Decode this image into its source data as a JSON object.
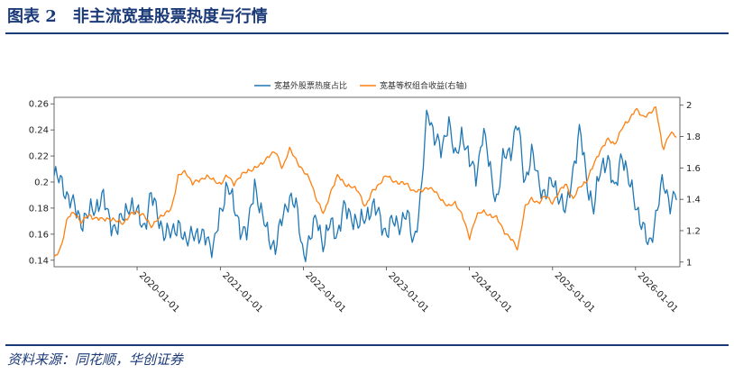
{
  "figure": {
    "title": "图表 2　非主流宽基股票热度与行情",
    "source": "资料来源：同花顺，华创证券"
  },
  "chart_data": {
    "type": "line",
    "legend_position": "top-center",
    "grid": false,
    "x_ticks": [
      "2020-01-01",
      "2021-01-01",
      "2022-01-01",
      "2023-01-01",
      "2024-01-01",
      "2025-01-01",
      "2026-01-01"
    ],
    "xlim": [
      "2019-01-01",
      "2026-07-15"
    ],
    "y_left": {
      "ylim": [
        0.135,
        0.265
      ],
      "ticks": [
        0.14,
        0.16,
        0.18,
        0.2,
        0.22,
        0.24,
        0.26
      ],
      "tick_labels": [
        "0.14",
        "0.16",
        "0.18",
        "0.2",
        "0.22",
        "0.24",
        "0.26"
      ]
    },
    "y_right": {
      "ylim": [
        0.97,
        2.05
      ],
      "ticks": [
        1,
        1.2,
        1.4,
        1.6,
        1.8,
        2
      ],
      "tick_labels": [
        "1",
        "1.2",
        "1.4",
        "1.6",
        "1.8",
        "2"
      ]
    },
    "series": [
      {
        "name": "宽基外股票热度占比",
        "axis": "left",
        "color": "#1f77b4",
        "points": [
          [
            "2019-01-01",
            0.205
          ],
          [
            "2019-02-01",
            0.2
          ],
          [
            "2019-03-01",
            0.19
          ],
          [
            "2019-04-01",
            0.18
          ],
          [
            "2019-05-01",
            0.17
          ],
          [
            "2019-06-01",
            0.175
          ],
          [
            "2019-07-01",
            0.18
          ],
          [
            "2019-08-01",
            0.19
          ],
          [
            "2019-09-01",
            0.17
          ],
          [
            "2019-10-01",
            0.165
          ],
          [
            "2019-11-01",
            0.172
          ],
          [
            "2019-12-01",
            0.185
          ],
          [
            "2020-01-01",
            0.175
          ],
          [
            "2020-02-01",
            0.165
          ],
          [
            "2020-03-01",
            0.19
          ],
          [
            "2020-04-01",
            0.175
          ],
          [
            "2020-05-01",
            0.16
          ],
          [
            "2020-06-01",
            0.16
          ],
          [
            "2020-07-01",
            0.17
          ],
          [
            "2020-08-01",
            0.15
          ],
          [
            "2020-09-01",
            0.165
          ],
          [
            "2020-10-01",
            0.155
          ],
          [
            "2020-11-01",
            0.16
          ],
          [
            "2020-12-01",
            0.148
          ],
          [
            "2021-01-01",
            0.175
          ],
          [
            "2021-02-01",
            0.2
          ],
          [
            "2021-03-01",
            0.18
          ],
          [
            "2021-04-01",
            0.165
          ],
          [
            "2021-05-01",
            0.16
          ],
          [
            "2021-06-01",
            0.2
          ],
          [
            "2021-07-01",
            0.175
          ],
          [
            "2021-08-01",
            0.158
          ],
          [
            "2021-09-01",
            0.15
          ],
          [
            "2021-10-01",
            0.172
          ],
          [
            "2021-11-01",
            0.19
          ],
          [
            "2021-12-01",
            0.18
          ],
          [
            "2022-01-01",
            0.145
          ],
          [
            "2022-02-01",
            0.155
          ],
          [
            "2022-03-01",
            0.175
          ],
          [
            "2022-04-01",
            0.15
          ],
          [
            "2022-05-01",
            0.17
          ],
          [
            "2022-06-01",
            0.16
          ],
          [
            "2022-07-01",
            0.18
          ],
          [
            "2022-08-01",
            0.175
          ],
          [
            "2022-09-01",
            0.165
          ],
          [
            "2022-10-01",
            0.175
          ],
          [
            "2022-11-01",
            0.18
          ],
          [
            "2022-12-01",
            0.175
          ],
          [
            "2023-01-01",
            0.16
          ],
          [
            "2023-02-01",
            0.17
          ],
          [
            "2023-03-01",
            0.168
          ],
          [
            "2023-04-01",
            0.175
          ],
          [
            "2023-05-01",
            0.155
          ],
          [
            "2023-06-01",
            0.185
          ],
          [
            "2023-07-01",
            0.258
          ],
          [
            "2023-08-01",
            0.235
          ],
          [
            "2023-09-01",
            0.222
          ],
          [
            "2023-10-01",
            0.25
          ],
          [
            "2023-11-01",
            0.215
          ],
          [
            "2023-12-01",
            0.24
          ],
          [
            "2024-01-01",
            0.215
          ],
          [
            "2024-02-01",
            0.205
          ],
          [
            "2024-03-01",
            0.24
          ],
          [
            "2024-04-01",
            0.21
          ],
          [
            "2024-05-01",
            0.185
          ],
          [
            "2024-06-01",
            0.22
          ],
          [
            "2024-07-01",
            0.225
          ],
          [
            "2024-08-01",
            0.245
          ],
          [
            "2024-09-01",
            0.2
          ],
          [
            "2024-10-01",
            0.222
          ],
          [
            "2024-11-01",
            0.2
          ],
          [
            "2024-12-01",
            0.19
          ],
          [
            "2025-01-01",
            0.2
          ],
          [
            "2025-02-01",
            0.19
          ],
          [
            "2025-03-01",
            0.175
          ],
          [
            "2025-04-01",
            0.21
          ],
          [
            "2025-05-01",
            0.24
          ],
          [
            "2025-06-01",
            0.2
          ],
          [
            "2025-07-01",
            0.18
          ],
          [
            "2025-08-01",
            0.21
          ],
          [
            "2025-09-01",
            0.22
          ],
          [
            "2025-10-01",
            0.19
          ],
          [
            "2025-11-01",
            0.225
          ],
          [
            "2025-12-01",
            0.2
          ],
          [
            "2026-01-01",
            0.185
          ],
          [
            "2026-02-01",
            0.165
          ],
          [
            "2026-03-01",
            0.15
          ],
          [
            "2026-04-01",
            0.175
          ],
          [
            "2026-05-01",
            0.2
          ],
          [
            "2026-06-01",
            0.185
          ],
          [
            "2026-07-01",
            0.19
          ]
        ]
      },
      {
        "name": "宽基等权组合收益(右轴)",
        "axis": "right",
        "color": "#ff7f0e",
        "points": [
          [
            "2019-01-01",
            1.02
          ],
          [
            "2019-02-01",
            1.1
          ],
          [
            "2019-03-01",
            1.28
          ],
          [
            "2019-04-01",
            1.32
          ],
          [
            "2019-05-01",
            1.25
          ],
          [
            "2019-06-01",
            1.3
          ],
          [
            "2019-07-01",
            1.28
          ],
          [
            "2019-08-01",
            1.27
          ],
          [
            "2019-09-01",
            1.28
          ],
          [
            "2019-10-01",
            1.26
          ],
          [
            "2019-11-01",
            1.25
          ],
          [
            "2019-12-01",
            1.3
          ],
          [
            "2020-01-01",
            1.32
          ],
          [
            "2020-02-01",
            1.3
          ],
          [
            "2020-03-01",
            1.22
          ],
          [
            "2020-04-01",
            1.28
          ],
          [
            "2020-05-01",
            1.3
          ],
          [
            "2020-06-01",
            1.35
          ],
          [
            "2020-07-01",
            1.55
          ],
          [
            "2020-08-01",
            1.58
          ],
          [
            "2020-09-01",
            1.5
          ],
          [
            "2020-10-01",
            1.52
          ],
          [
            "2020-11-01",
            1.55
          ],
          [
            "2020-12-01",
            1.52
          ],
          [
            "2021-01-01",
            1.5
          ],
          [
            "2021-02-01",
            1.55
          ],
          [
            "2021-03-01",
            1.5
          ],
          [
            "2021-04-01",
            1.55
          ],
          [
            "2021-05-01",
            1.58
          ],
          [
            "2021-06-01",
            1.6
          ],
          [
            "2021-07-01",
            1.62
          ],
          [
            "2021-08-01",
            1.68
          ],
          [
            "2021-09-01",
            1.7
          ],
          [
            "2021-10-01",
            1.6
          ],
          [
            "2021-11-01",
            1.72
          ],
          [
            "2021-12-01",
            1.65
          ],
          [
            "2022-01-01",
            1.58
          ],
          [
            "2022-02-01",
            1.52
          ],
          [
            "2022-03-01",
            1.4
          ],
          [
            "2022-04-01",
            1.3
          ],
          [
            "2022-05-01",
            1.45
          ],
          [
            "2022-06-01",
            1.55
          ],
          [
            "2022-07-01",
            1.5
          ],
          [
            "2022-08-01",
            1.48
          ],
          [
            "2022-09-01",
            1.45
          ],
          [
            "2022-10-01",
            1.35
          ],
          [
            "2022-11-01",
            1.45
          ],
          [
            "2022-12-01",
            1.5
          ],
          [
            "2023-01-01",
            1.55
          ],
          [
            "2023-02-01",
            1.52
          ],
          [
            "2023-03-01",
            1.5
          ],
          [
            "2023-04-01",
            1.5
          ],
          [
            "2023-05-01",
            1.45
          ],
          [
            "2023-06-01",
            1.45
          ],
          [
            "2023-07-01",
            1.48
          ],
          [
            "2023-08-01",
            1.45
          ],
          [
            "2023-09-01",
            1.4
          ],
          [
            "2023-10-01",
            1.35
          ],
          [
            "2023-11-01",
            1.38
          ],
          [
            "2023-12-01",
            1.3
          ],
          [
            "2024-01-01",
            1.15
          ],
          [
            "2024-02-01",
            1.3
          ],
          [
            "2024-03-01",
            1.32
          ],
          [
            "2024-04-01",
            1.3
          ],
          [
            "2024-05-01",
            1.28
          ],
          [
            "2024-06-01",
            1.2
          ],
          [
            "2024-07-01",
            1.15
          ],
          [
            "2024-08-01",
            1.08
          ],
          [
            "2024-09-01",
            1.35
          ],
          [
            "2024-10-01",
            1.4
          ],
          [
            "2024-11-01",
            1.38
          ],
          [
            "2024-12-01",
            1.42
          ],
          [
            "2025-01-01",
            1.38
          ],
          [
            "2025-02-01",
            1.45
          ],
          [
            "2025-03-01",
            1.5
          ],
          [
            "2025-04-01",
            1.4
          ],
          [
            "2025-05-01",
            1.48
          ],
          [
            "2025-06-01",
            1.52
          ],
          [
            "2025-07-01",
            1.62
          ],
          [
            "2025-08-01",
            1.72
          ],
          [
            "2025-09-01",
            1.78
          ],
          [
            "2025-10-01",
            1.75
          ],
          [
            "2025-11-01",
            1.85
          ],
          [
            "2025-12-01",
            1.9
          ],
          [
            "2026-01-01",
            1.98
          ],
          [
            "2026-02-01",
            1.92
          ],
          [
            "2026-03-01",
            1.95
          ],
          [
            "2026-04-01",
            1.98
          ],
          [
            "2026-05-01",
            1.72
          ],
          [
            "2026-06-01",
            1.82
          ],
          [
            "2026-07-01",
            1.8
          ]
        ]
      }
    ]
  }
}
